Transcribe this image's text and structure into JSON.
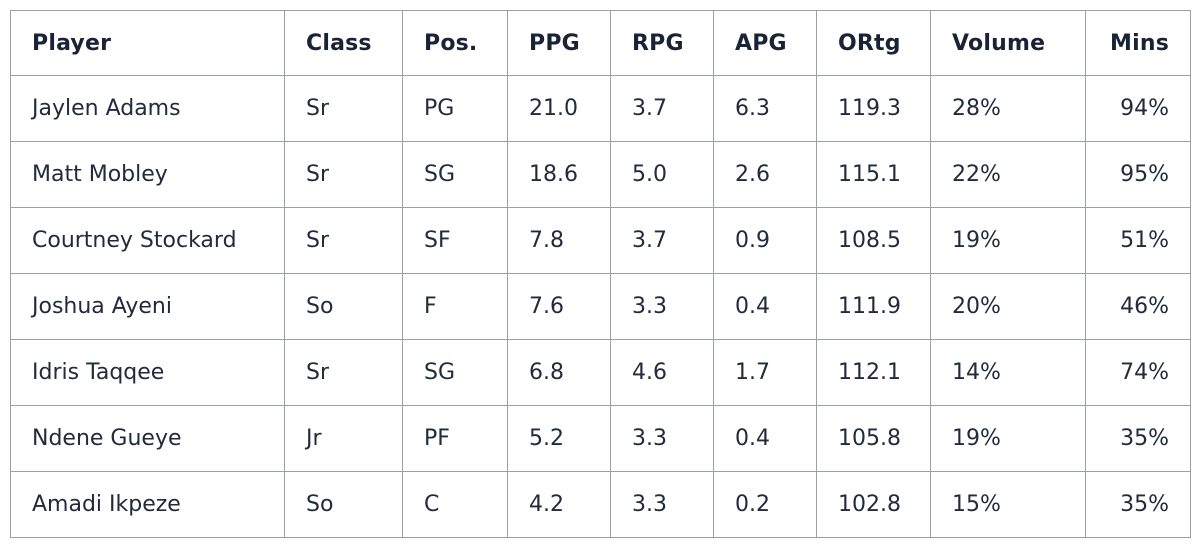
{
  "table": {
    "headers": [
      "Player",
      "Class",
      "Pos.",
      "PPG",
      "RPG",
      "APG",
      "ORtg",
      "Volume",
      "Mins"
    ],
    "rows": [
      [
        "Jaylen Adams",
        "Sr",
        "PG",
        "21.0",
        "3.7",
        "6.3",
        "119.3",
        "28%",
        "94%"
      ],
      [
        "Matt Mobley",
        "Sr",
        "SG",
        "18.6",
        "5.0",
        "2.6",
        "115.1",
        "22%",
        "95%"
      ],
      [
        "Courtney Stockard",
        "Sr",
        "SF",
        "7.8",
        "3.7",
        "0.9",
        "108.5",
        "19%",
        "51%"
      ],
      [
        "Joshua Ayeni",
        "So",
        "F",
        "7.6",
        "3.3",
        "0.4",
        "111.9",
        "20%",
        "46%"
      ],
      [
        "Idris Taqqee",
        "Sr",
        "SG",
        "6.8",
        "4.6",
        "1.7",
        "112.1",
        "14%",
        "74%"
      ],
      [
        "Ndene Gueye",
        "Jr",
        "PF",
        "5.2",
        "3.3",
        "0.4",
        "105.8",
        "19%",
        "35%"
      ],
      [
        "Amadi Ikpeze",
        "So",
        "C",
        "4.2",
        "3.3",
        "0.2",
        "102.8",
        "15%",
        "35%"
      ]
    ]
  }
}
